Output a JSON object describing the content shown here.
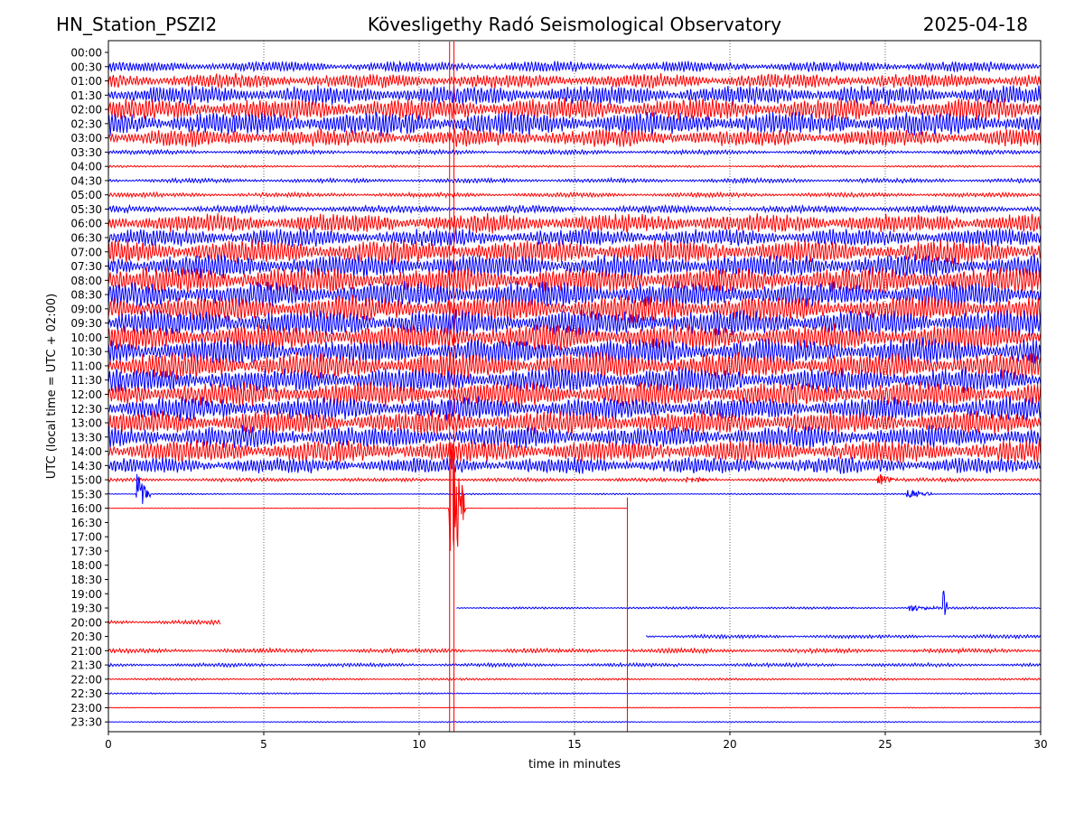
{
  "header": {
    "station": "HN_Station_PSZI2",
    "observatory": "Kövesligethy Radó Seismological Observatory",
    "date": "2025-04-18"
  },
  "chart_data": {
    "type": "line",
    "title": "Kövesligethy Radó Seismological Observatory",
    "xlabel": "time in minutes",
    "ylabel": "UTC (local time = UTC + 02:00)",
    "xlim": [
      0,
      30
    ],
    "xticks": [
      0,
      5,
      10,
      15,
      20,
      25,
      30
    ],
    "grid": "vertical dotted lines at 5-minute ticks",
    "row_colors": [
      "#ff0000",
      "#0000ff"
    ],
    "rows": [
      {
        "label": "00:00",
        "color": "#ff0000",
        "amplitude": 0,
        "segments": []
      },
      {
        "label": "00:30",
        "color": "#0000ff",
        "amplitude": 0.7,
        "segments": [
          [
            0,
            30
          ]
        ]
      },
      {
        "label": "01:00",
        "color": "#ff0000",
        "amplitude": 1.0,
        "segments": [
          [
            0,
            30
          ]
        ]
      },
      {
        "label": "01:30",
        "color": "#0000ff",
        "amplitude": 1.3,
        "segments": [
          [
            0,
            30
          ]
        ]
      },
      {
        "label": "02:00",
        "color": "#ff0000",
        "amplitude": 1.5,
        "segments": [
          [
            0,
            30
          ]
        ]
      },
      {
        "label": "02:30",
        "color": "#0000ff",
        "amplitude": 1.6,
        "segments": [
          [
            0,
            30
          ]
        ]
      },
      {
        "label": "03:00",
        "color": "#ff0000",
        "amplitude": 1.2,
        "segments": [
          [
            0,
            30
          ]
        ]
      },
      {
        "label": "03:30",
        "color": "#0000ff",
        "amplitude": 0.3,
        "segments": [
          [
            0,
            30
          ]
        ]
      },
      {
        "label": "04:00",
        "color": "#ff0000",
        "amplitude": 0.15,
        "segments": [
          [
            0,
            30
          ]
        ]
      },
      {
        "label": "04:30",
        "color": "#0000ff",
        "amplitude": 0.3,
        "segments": [
          [
            0,
            30
          ]
        ]
      },
      {
        "label": "05:00",
        "color": "#ff0000",
        "amplitude": 0.3,
        "segments": [
          [
            0,
            30
          ]
        ]
      },
      {
        "label": "05:30",
        "color": "#0000ff",
        "amplitude": 0.5,
        "segments": [
          [
            0,
            30
          ]
        ]
      },
      {
        "label": "06:00",
        "color": "#ff0000",
        "amplitude": 1.3,
        "segments": [
          [
            0,
            30
          ]
        ]
      },
      {
        "label": "06:30",
        "color": "#0000ff",
        "amplitude": 1.2,
        "segments": [
          [
            0,
            30
          ]
        ]
      },
      {
        "label": "07:00",
        "color": "#ff0000",
        "amplitude": 1.6,
        "segments": [
          [
            0,
            30
          ]
        ]
      },
      {
        "label": "07:30",
        "color": "#0000ff",
        "amplitude": 1.6,
        "segments": [
          [
            0,
            30
          ]
        ]
      },
      {
        "label": "08:00",
        "color": "#ff0000",
        "amplitude": 1.8,
        "segments": [
          [
            0,
            30
          ]
        ]
      },
      {
        "label": "08:30",
        "color": "#0000ff",
        "amplitude": 1.8,
        "segments": [
          [
            0,
            30
          ]
        ]
      },
      {
        "label": "09:00",
        "color": "#ff0000",
        "amplitude": 1.8,
        "segments": [
          [
            0,
            30
          ]
        ]
      },
      {
        "label": "09:30",
        "color": "#0000ff",
        "amplitude": 1.8,
        "segments": [
          [
            0,
            30
          ]
        ]
      },
      {
        "label": "10:00",
        "color": "#ff0000",
        "amplitude": 1.8,
        "segments": [
          [
            0,
            30
          ]
        ]
      },
      {
        "label": "10:30",
        "color": "#0000ff",
        "amplitude": 1.8,
        "segments": [
          [
            0,
            30
          ]
        ]
      },
      {
        "label": "11:00",
        "color": "#ff0000",
        "amplitude": 1.8,
        "segments": [
          [
            0,
            30
          ]
        ]
      },
      {
        "label": "11:30",
        "color": "#0000ff",
        "amplitude": 1.7,
        "segments": [
          [
            0,
            30
          ]
        ]
      },
      {
        "label": "12:00",
        "color": "#ff0000",
        "amplitude": 1.7,
        "segments": [
          [
            0,
            30
          ]
        ]
      },
      {
        "label": "12:30",
        "color": "#0000ff",
        "amplitude": 1.6,
        "segments": [
          [
            0,
            30
          ]
        ]
      },
      {
        "label": "13:00",
        "color": "#ff0000",
        "amplitude": 1.6,
        "segments": [
          [
            0,
            30
          ]
        ]
      },
      {
        "label": "13:30",
        "color": "#0000ff",
        "amplitude": 1.5,
        "segments": [
          [
            0,
            30
          ]
        ]
      },
      {
        "label": "14:00",
        "color": "#ff0000",
        "amplitude": 1.5,
        "segments": [
          [
            0,
            30
          ]
        ]
      },
      {
        "label": "14:30",
        "color": "#0000ff",
        "amplitude": 1.1,
        "segments": [
          [
            0,
            30
          ]
        ]
      },
      {
        "label": "15:00",
        "color": "#ff0000",
        "amplitude": 0.25,
        "segments": [
          [
            0,
            30
          ]
        ]
      },
      {
        "label": "15:30",
        "color": "#0000ff",
        "amplitude": 0.1,
        "segments": [
          [
            0,
            30
          ]
        ]
      },
      {
        "label": "16:00",
        "color": "#ff0000",
        "amplitude": 0.05,
        "segments": [
          [
            0,
            16.7
          ]
        ]
      },
      {
        "label": "16:30",
        "color": "#0000ff",
        "amplitude": 0,
        "segments": []
      },
      {
        "label": "17:00",
        "color": "#ff0000",
        "amplitude": 0,
        "segments": []
      },
      {
        "label": "17:30",
        "color": "#0000ff",
        "amplitude": 0,
        "segments": []
      },
      {
        "label": "18:00",
        "color": "#ff0000",
        "amplitude": 0,
        "segments": []
      },
      {
        "label": "18:30",
        "color": "#0000ff",
        "amplitude": 0,
        "segments": []
      },
      {
        "label": "19:00",
        "color": "#ff0000",
        "amplitude": 0,
        "segments": []
      },
      {
        "label": "19:30",
        "color": "#0000ff",
        "amplitude": 0.15,
        "segments": [
          [
            11.2,
            30
          ]
        ]
      },
      {
        "label": "20:00",
        "color": "#ff0000",
        "amplitude": 0.3,
        "segments": [
          [
            0,
            3.6
          ]
        ]
      },
      {
        "label": "20:30",
        "color": "#0000ff",
        "amplitude": 0.25,
        "segments": [
          [
            17.3,
            30
          ]
        ]
      },
      {
        "label": "21:00",
        "color": "#ff0000",
        "amplitude": 0.3,
        "segments": [
          [
            0,
            30
          ]
        ]
      },
      {
        "label": "21:30",
        "color": "#0000ff",
        "amplitude": 0.25,
        "segments": [
          [
            0,
            30
          ]
        ]
      },
      {
        "label": "22:00",
        "color": "#ff0000",
        "amplitude": 0.15,
        "segments": [
          [
            0,
            30
          ]
        ]
      },
      {
        "label": "22:30",
        "color": "#0000ff",
        "amplitude": 0.1,
        "segments": [
          [
            0,
            30
          ]
        ]
      },
      {
        "label": "23:00",
        "color": "#ff0000",
        "amplitude": 0.05,
        "segments": [
          [
            0,
            30
          ]
        ]
      },
      {
        "label": "23:30",
        "color": "#0000ff",
        "amplitude": 0.08,
        "segments": [
          [
            0,
            30
          ]
        ]
      }
    ],
    "events": [
      {
        "row": "15:30",
        "minute": 0.95,
        "amplitude": 3.5,
        "duration": 0.4,
        "color": "#0000ff"
      },
      {
        "row": "15:30",
        "minute": 25.7,
        "amplitude": 1.0,
        "duration": 0.8,
        "color": "#0000ff"
      },
      {
        "row": "15:00",
        "minute": 18.6,
        "amplitude": 0.5,
        "duration": 1.0,
        "color": "#ff0000"
      },
      {
        "row": "15:00",
        "minute": 24.8,
        "amplitude": 1.0,
        "duration": 0.6,
        "color": "#ff0000"
      },
      {
        "row": "16:00",
        "minute": 11.0,
        "amplitude": 14,
        "duration": 0.5,
        "color": "#ff0000"
      },
      {
        "row": "19:30",
        "minute": 25.8,
        "amplitude": 0.6,
        "duration": 0.9,
        "color": "#0000ff"
      },
      {
        "row": "19:30",
        "minute": 26.9,
        "amplitude": 3.0,
        "duration": 0.1,
        "color": "#0000ff"
      }
    ],
    "vertical_marks": [
      {
        "minute": 16.7,
        "from": "16:00",
        "to": "23:30",
        "color": "#ff0000"
      },
      {
        "minute": 10.98,
        "from": "00:00",
        "to": "23:30",
        "color": "#ff0000"
      },
      {
        "minute": 11.12,
        "from": "00:00",
        "to": "23:30",
        "color": "#ff0000"
      }
    ]
  }
}
